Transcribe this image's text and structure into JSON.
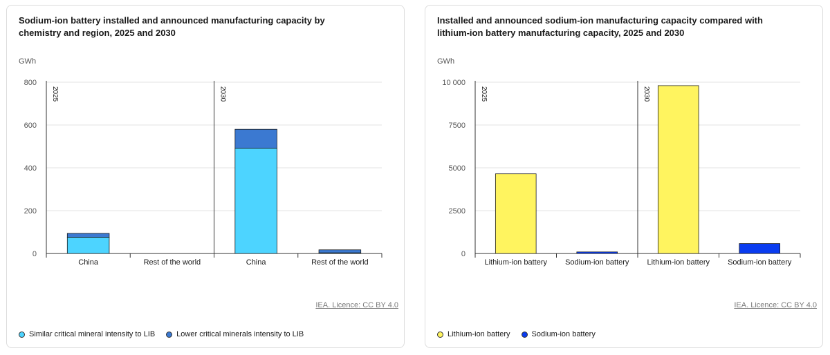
{
  "chart_data": [
    {
      "type": "bar",
      "stacked": true,
      "title": "Sodium-ion battery installed and announced manufacturing capacity by chemistry and region, 2025 and 2030",
      "ylabel": "GWh",
      "ylim": [
        0,
        800
      ],
      "yticks": [
        0,
        200,
        400,
        600,
        800
      ],
      "ytick_labels": [
        "0",
        "200",
        "400",
        "600",
        "800"
      ],
      "groups": [
        {
          "year": "2025",
          "categories": [
            "China",
            "Rest of the world"
          ]
        },
        {
          "year": "2030",
          "categories": [
            "China",
            "Rest of the world"
          ]
        }
      ],
      "series": [
        {
          "name": "Similar critical mineral intensity to LIB",
          "color": "#4dd4ff",
          "values": [
            76,
            0,
            492,
            3
          ]
        },
        {
          "name": "Lower critical minerals intensity to LIB",
          "color": "#3b79d1",
          "values": [
            18,
            0,
            88,
            14
          ]
        }
      ],
      "licence": "IEA. Licence: CC BY 4.0"
    },
    {
      "type": "bar",
      "stacked": false,
      "title": "Installed and announced sodium-ion manufacturing capacity compared with lithium-ion battery manufacturing capacity, 2025 and 2030",
      "ylabel": "GWh",
      "ylim": [
        0,
        10000
      ],
      "yticks": [
        0,
        2500,
        5000,
        7500,
        10000
      ],
      "ytick_labels": [
        "0",
        "2500",
        "5000",
        "7500",
        "10 000"
      ],
      "groups": [
        {
          "year": "2025",
          "categories": [
            "Lithium-ion battery",
            "Sodium-ion battery"
          ]
        },
        {
          "year": "2030",
          "categories": [
            "Lithium-ion battery",
            "Sodium-ion battery"
          ]
        }
      ],
      "series": [
        {
          "name": "Lithium-ion battery",
          "color": "#fff45f",
          "values": [
            4650,
            0,
            9800,
            0
          ]
        },
        {
          "name": "Sodium-ion battery",
          "color": "#0a3cf0",
          "values": [
            0,
            90,
            0,
            580
          ]
        }
      ],
      "licence": "IEA. Licence: CC BY 4.0"
    }
  ]
}
